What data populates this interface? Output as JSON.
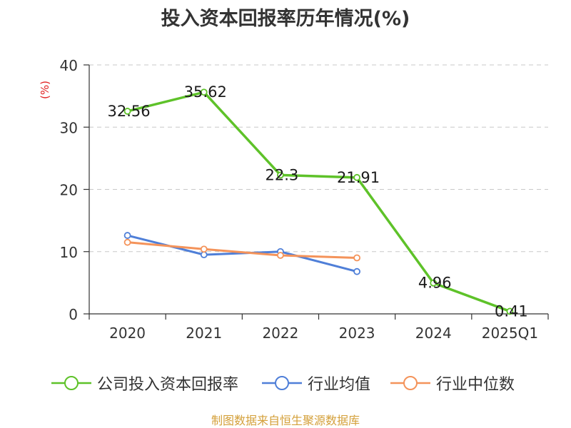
{
  "title": "投入资本回报率历年情况(%)",
  "source": "制图数据来自恒生聚源数据库",
  "chart_data": {
    "type": "line",
    "categories": [
      "2020",
      "2021",
      "2022",
      "2023",
      "2024",
      "2025Q1"
    ],
    "ylabel": "(%)",
    "ylim": [
      0,
      40
    ],
    "yticks": [
      0,
      10,
      20,
      30,
      40
    ],
    "grid": true,
    "legend_position": "bottom",
    "series": [
      {
        "name": "公司投入资本回报率",
        "color": "#5ec229",
        "values": [
          32.56,
          35.62,
          22.3,
          21.91,
          4.96,
          0.41
        ],
        "labels": [
          "32.56",
          "35.62",
          "22.3",
          "21.91",
          "4.96",
          "0.41"
        ]
      },
      {
        "name": "行业均值",
        "color": "#4f7fd8",
        "values": [
          12.6,
          9.5,
          10.0,
          6.8,
          null,
          null
        ]
      },
      {
        "name": "行业中位数",
        "color": "#f4935a",
        "values": [
          11.5,
          10.4,
          9.4,
          9.0,
          null,
          null
        ]
      }
    ]
  }
}
